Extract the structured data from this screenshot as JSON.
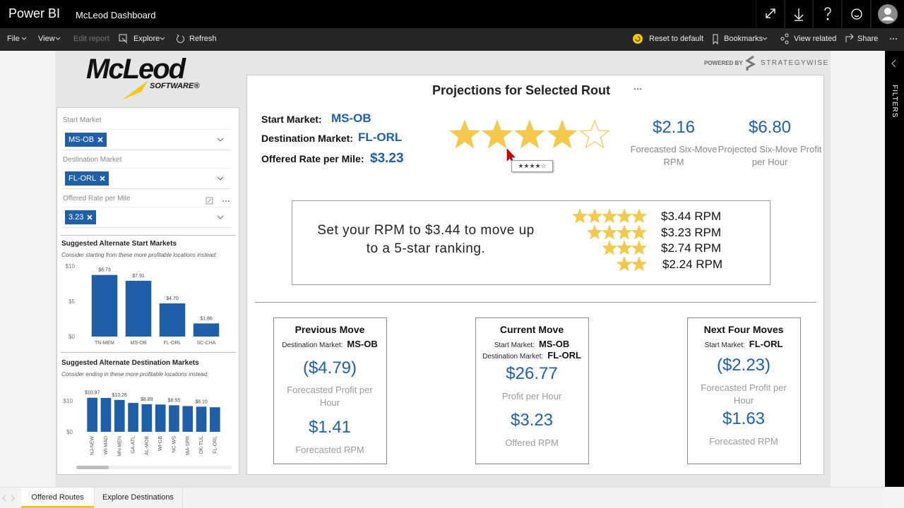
{
  "app_bar": {
    "product": "Power BI",
    "report": "McLeod Dashboard"
  },
  "menu": {
    "left": [
      "File",
      "View",
      "Edit report",
      "Explore",
      "Refresh"
    ],
    "right": [
      "Reset to default",
      "Bookmarks",
      "View related",
      "Share"
    ]
  },
  "logo": {
    "name": "McLeod",
    "tagline": "SOFTWARE®"
  },
  "powered_by": {
    "label": "POWERED BY",
    "brand": "STRATEGYWISE"
  },
  "filters": [
    {
      "label": "Start Market",
      "value": "MS-OB"
    },
    {
      "label": "Destination Market",
      "value": "FL-ORL"
    },
    {
      "label": "Offered Rate per Mile",
      "value": "3.23"
    }
  ],
  "start_chart": {
    "type": "bar",
    "title": "Suggested Alternate Start Markets",
    "subtitle": "Consider starting from these more profitable locations instead:",
    "categories": [
      "TN-MEM",
      "MS-OB",
      "FL-ORL",
      "SC-CHA"
    ],
    "values": [
      8.73,
      7.91,
      4.7,
      1.86
    ],
    "value_labels": [
      "$8.73",
      "$7.91",
      "$4.70",
      "$1.86"
    ],
    "color": "#1f5fa8",
    "ylim": [
      0,
      10
    ],
    "yticks": [
      {
        "value": 0,
        "label": "$0"
      },
      {
        "value": 5,
        "label": "$5"
      },
      {
        "value": 10,
        "label": "$10"
      }
    ]
  },
  "dest_chart": {
    "type": "bar",
    "title": "Suggested Alternate Destination Markets",
    "subtitle": "Consider ending in these more profitable locations instead:",
    "categories": [
      "NJ-NEW",
      "WI-MAD",
      "MN-MEN",
      "GA-ATL",
      "AL-MOB",
      "WI-GB",
      "NC-WS",
      "MA-SPR",
      "OK-TUL",
      "FL-ORL"
    ],
    "values": [
      10.97,
      10.9,
      10.26,
      9.3,
      8.89,
      8.8,
      8.55,
      8.3,
      8.1,
      7.9
    ],
    "value_labels": [
      "$10.97",
      null,
      "$10.26",
      null,
      "$8.89",
      null,
      "$8.55",
      null,
      "$8.10",
      null
    ],
    "color": "#1f5fa8",
    "ylim": [
      0,
      12
    ],
    "yticks": [
      {
        "value": 0,
        "label": "$0"
      },
      {
        "value": 10,
        "label": "$10"
      }
    ]
  },
  "projection": {
    "title": "Projections for Selected Rout",
    "details": [
      {
        "label": "Start Market:",
        "value": "MS-OB"
      },
      {
        "label": "Destination Market:",
        "value": "FL-ORL"
      },
      {
        "label": "Offered Rate per Mile:",
        "value": "$3.23"
      }
    ],
    "rating": {
      "value": 4,
      "max": 5,
      "tooltip": "★★★★☆"
    },
    "kpis": [
      {
        "value": "$2.16",
        "label": "Forecasted Six-Move RPM"
      },
      {
        "value": "$6.80",
        "label": "Projected Six-Move Profit per Hour"
      }
    ]
  },
  "recommendation": {
    "message": "Set your RPM to $3.44 to move up to a 5-star ranking.",
    "tiers": [
      {
        "stars": 5,
        "rpm": "$3.44 RPM"
      },
      {
        "stars": 4,
        "rpm": "$3.23 RPM"
      },
      {
        "stars": 3,
        "rpm": "$2.74 RPM"
      },
      {
        "stars": 2,
        "rpm": "$2.24 RPM"
      }
    ]
  },
  "cards": [
    {
      "title": "Previous Move",
      "fields": [
        {
          "label": "Destination Market:",
          "value": "MS-OB"
        }
      ],
      "metrics": [
        {
          "value": "($4.79)",
          "label": "Forecasted Profit per Hour"
        },
        {
          "value": "$1.41",
          "label": "Forecasted RPM"
        }
      ]
    },
    {
      "title": "Current Move",
      "fields": [
        {
          "label": "Start Market:",
          "value": "MS-OB"
        },
        {
          "label": "Destination Market:",
          "value": "FL-ORL"
        }
      ],
      "metrics": [
        {
          "value": "$26.77",
          "label": "Profit per Hour"
        },
        {
          "value": "$3.23",
          "label": "Offered RPM"
        }
      ]
    },
    {
      "title": "Next Four Moves",
      "fields": [
        {
          "label": "Start Market:",
          "value": "FL-ORL"
        }
      ],
      "metrics": [
        {
          "value": "($2.23)",
          "label": "Forecasted Profit per Hour"
        },
        {
          "value": "$1.63",
          "label": "Forecasted RPM"
        }
      ]
    }
  ],
  "tabs": {
    "items": [
      "Offered Routes",
      "Explore Destinations"
    ],
    "active": 0
  },
  "side_pane": "FILTERS"
}
